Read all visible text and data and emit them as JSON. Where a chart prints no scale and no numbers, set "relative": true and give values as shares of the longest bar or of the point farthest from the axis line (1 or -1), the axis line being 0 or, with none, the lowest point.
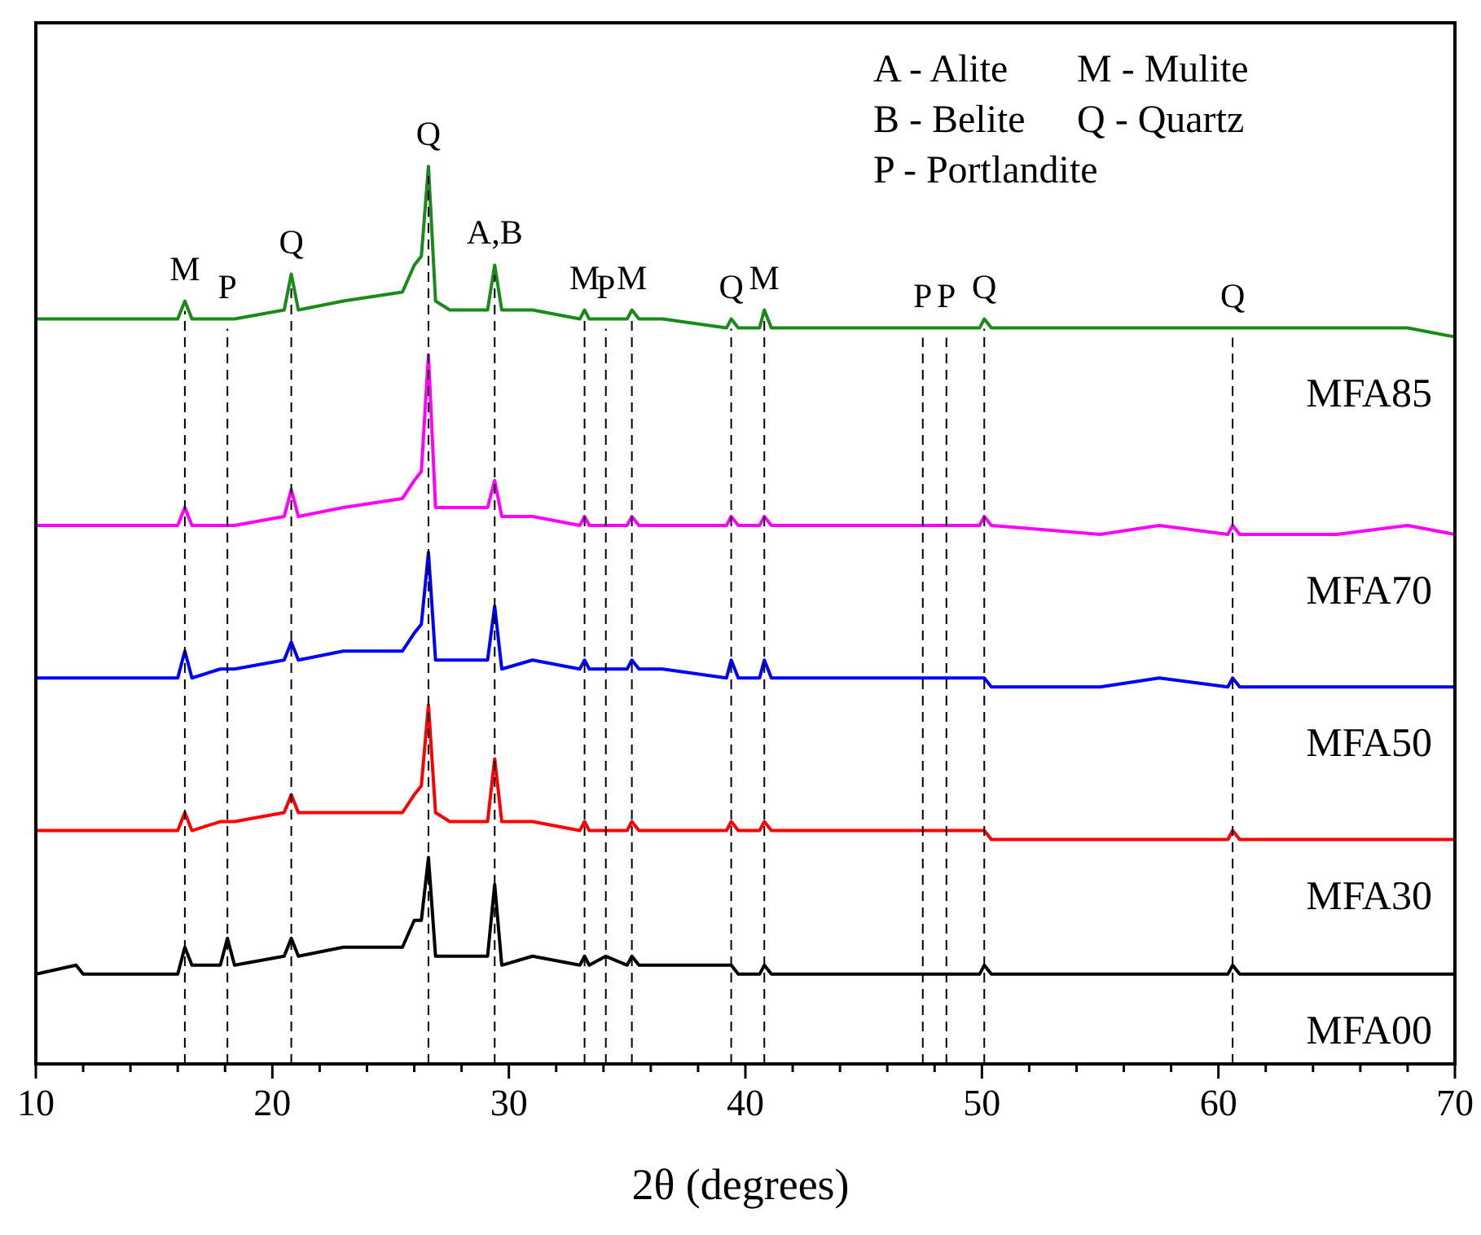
{
  "chart_data": {
    "type": "line",
    "relative": true,
    "xlabel": "2θ (degrees)",
    "xlim": [
      10,
      70
    ],
    "xticks": [
      10,
      {
        "value": 12,
        "label": null
      },
      {
        "value": 14,
        "label": null
      },
      {
        "value": 16,
        "label": null
      },
      {
        "value": 18,
        "label": null
      },
      20,
      {
        "value": 22,
        "label": null
      },
      {
        "value": 24,
        "label": null
      },
      {
        "value": 26,
        "label": null
      },
      {
        "value": 28,
        "label": null
      },
      30,
      {
        "value": 32,
        "label": null
      },
      {
        "value": 34,
        "label": null
      },
      {
        "value": 36,
        "label": null
      },
      {
        "value": 38,
        "label": null
      },
      40,
      {
        "value": 42,
        "label": null
      },
      {
        "value": 44,
        "label": null
      },
      {
        "value": 46,
        "label": null
      },
      {
        "value": 48,
        "label": null
      },
      50,
      {
        "value": 52,
        "label": null
      },
      {
        "value": 54,
        "label": null
      },
      {
        "value": 56,
        "label": null
      },
      {
        "value": 58,
        "label": null
      },
      60,
      {
        "value": 62,
        "label": null
      },
      {
        "value": 64,
        "label": null
      },
      {
        "value": 66,
        "label": null
      },
      {
        "value": 68,
        "label": null
      },
      70
    ],
    "x": [
      10,
      11.7,
      12,
      16.0,
      16.3,
      16.6,
      17.8,
      18.1,
      18.4,
      20.5,
      20.8,
      21.1,
      23,
      25.5,
      26.0,
      26.3,
      26.6,
      26.9,
      27.5,
      29.1,
      29.4,
      29.7,
      31,
      33.0,
      33.2,
      33.4,
      34.1,
      35.0,
      35.2,
      35.5,
      36.5,
      39.2,
      39.4,
      39.7,
      40.6,
      40.8,
      41.1,
      43,
      47.5,
      48.5,
      49.9,
      50.1,
      50.4,
      55,
      57.5,
      60.4,
      60.6,
      60.9,
      65,
      68,
      70
    ],
    "series": [
      {
        "name": "MFA85",
        "color": "#1a8a1a",
        "values": [
          0.83,
          0.83,
          0.83,
          0.83,
          0.85,
          0.83,
          0.83,
          0.83,
          0.83,
          0.84,
          0.88,
          0.84,
          0.85,
          0.86,
          0.89,
          0.9,
          1,
          0.85,
          0.84,
          0.84,
          0.89,
          0.84,
          0.84,
          0.83,
          0.84,
          0.83,
          0.83,
          0.83,
          0.84,
          0.83,
          0.83,
          0.82,
          0.83,
          0.82,
          0.82,
          0.84,
          0.82,
          0.82,
          0.82,
          0.82,
          0.82,
          0.83,
          0.82,
          0.82,
          0.82,
          0.82,
          0.82,
          0.82,
          0.82,
          0.82,
          0.81
        ]
      },
      {
        "name": "MFA70",
        "color": "#ff00ff",
        "values": [
          0.6,
          0.6,
          0.6,
          0.6,
          0.62,
          0.6,
          0.6,
          0.6,
          0.6,
          0.61,
          0.64,
          0.61,
          0.62,
          0.63,
          0.65,
          0.66,
          0.79,
          0.62,
          0.62,
          0.62,
          0.65,
          0.61,
          0.61,
          0.6,
          0.61,
          0.6,
          0.6,
          0.6,
          0.61,
          0.6,
          0.6,
          0.6,
          0.61,
          0.6,
          0.6,
          0.61,
          0.6,
          0.6,
          0.6,
          0.6,
          0.6,
          0.61,
          0.6,
          0.59,
          0.6,
          0.59,
          0.6,
          0.59,
          0.59,
          0.6,
          0.59
        ]
      },
      {
        "name": "MFA50",
        "color": "#0000ff",
        "values": [
          0.43,
          0.43,
          0.43,
          0.43,
          0.46,
          0.43,
          0.44,
          0.44,
          0.44,
          0.45,
          0.47,
          0.45,
          0.46,
          0.46,
          0.48,
          0.49,
          0.57,
          0.45,
          0.45,
          0.45,
          0.51,
          0.44,
          0.45,
          0.44,
          0.45,
          0.44,
          0.44,
          0.44,
          0.45,
          0.44,
          0.44,
          0.43,
          0.45,
          0.43,
          0.43,
          0.45,
          0.43,
          0.43,
          0.43,
          0.43,
          0.43,
          0.43,
          0.42,
          0.42,
          0.43,
          0.42,
          0.43,
          0.42,
          0.42,
          0.42,
          0.42
        ]
      },
      {
        "name": "MFA30",
        "color": "#ff0000",
        "values": [
          0.26,
          0.26,
          0.26,
          0.26,
          0.28,
          0.26,
          0.27,
          0.27,
          0.27,
          0.28,
          0.3,
          0.28,
          0.28,
          0.28,
          0.3,
          0.31,
          0.4,
          0.28,
          0.27,
          0.27,
          0.34,
          0.27,
          0.27,
          0.26,
          0.27,
          0.26,
          0.26,
          0.26,
          0.27,
          0.26,
          0.26,
          0.26,
          0.27,
          0.26,
          0.26,
          0.27,
          0.26,
          0.26,
          0.26,
          0.26,
          0.26,
          0.26,
          0.25,
          0.25,
          0.25,
          0.25,
          0.26,
          0.25,
          0.25,
          0.25,
          0.25
        ]
      },
      {
        "name": "MFA00",
        "color": "#000000",
        "values": [
          0.1,
          0.11,
          0.1,
          0.1,
          0.13,
          0.11,
          0.11,
          0.14,
          0.11,
          0.12,
          0.14,
          0.12,
          0.13,
          0.13,
          0.16,
          0.16,
          0.23,
          0.12,
          0.12,
          0.12,
          0.2,
          0.11,
          0.12,
          0.11,
          0.12,
          0.11,
          0.12,
          0.11,
          0.12,
          0.11,
          0.11,
          0.11,
          0.11,
          0.1,
          0.1,
          0.11,
          0.1,
          0.1,
          0.1,
          0.1,
          0.1,
          0.11,
          0.1,
          0.1,
          0.1,
          0.1,
          0.11,
          0.1,
          0.1,
          0.1,
          0.1
        ]
      }
    ],
    "ref_lines": [
      {
        "axis": "x",
        "value": 16.3,
        "label": "M",
        "line_style": "dashed"
      },
      {
        "axis": "x",
        "value": 18.1,
        "label": "P",
        "line_style": "dashed"
      },
      {
        "axis": "x",
        "value": 20.8,
        "label": "Q",
        "line_style": "dashed"
      },
      {
        "axis": "x",
        "value": 26.6,
        "label": "Q",
        "line_style": "dashed"
      },
      {
        "axis": "x",
        "value": 29.4,
        "label": "A,B",
        "line_style": "dashed"
      },
      {
        "axis": "x",
        "value": 33.2,
        "label": "M",
        "line_style": "dashed"
      },
      {
        "axis": "x",
        "value": 34.1,
        "label": "P",
        "line_style": "dashed"
      },
      {
        "axis": "x",
        "value": 35.2,
        "label": "M",
        "line_style": "dashed"
      },
      {
        "axis": "x",
        "value": 39.4,
        "label": "Q",
        "line_style": "dashed"
      },
      {
        "axis": "x",
        "value": 40.8,
        "label": "M",
        "line_style": "dashed"
      },
      {
        "axis": "x",
        "value": 47.5,
        "label": "P",
        "line_style": "dashed"
      },
      {
        "axis": "x",
        "value": 48.5,
        "label": "P",
        "line_style": "dashed"
      },
      {
        "axis": "x",
        "value": 50.1,
        "label": "Q",
        "line_style": "dashed"
      },
      {
        "axis": "x",
        "value": 60.6,
        "label": "Q",
        "line_style": "dashed"
      }
    ],
    "annotations": [
      "A - Alite",
      "M - Mulite",
      "B - Belite",
      "Q - Quartz",
      "P - Portlandite"
    ],
    "legend": false,
    "marker": "none",
    "line_style": "solid"
  }
}
